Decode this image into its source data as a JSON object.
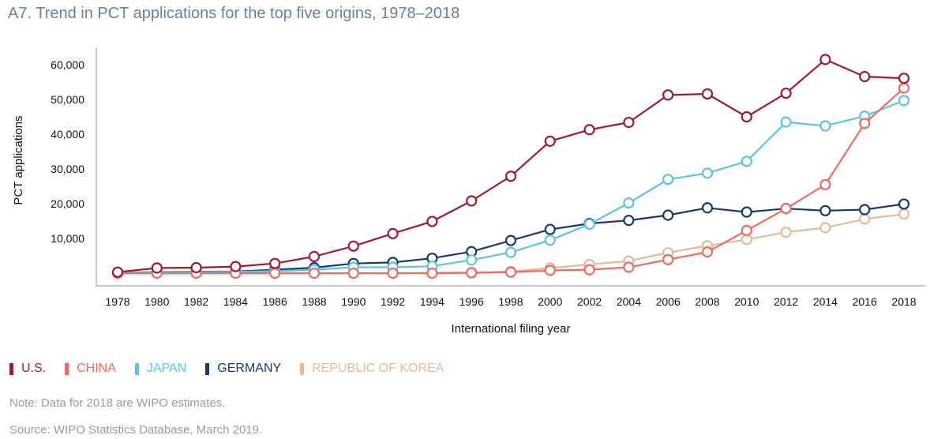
{
  "chart_data": {
    "type": "line",
    "title": "A7. Trend in PCT applications for the top five origins, 1978–2018",
    "xlabel": "International filing year",
    "ylabel": "PCT applications",
    "ylim": [
      0,
      65000
    ],
    "y_ticks": [
      10000,
      20000,
      30000,
      40000,
      50000,
      60000
    ],
    "y_tick_labels": [
      "10,000",
      "20,000",
      "30,000",
      "40,000",
      "50,000",
      "60,000"
    ],
    "grid": false,
    "legend_position": "bottom-left",
    "x": [
      1978,
      1980,
      1982,
      1984,
      1986,
      1988,
      1990,
      1992,
      1994,
      1996,
      1998,
      2000,
      2002,
      2004,
      2006,
      2008,
      2010,
      2012,
      2014,
      2016,
      2018
    ],
    "x_tick_labels": [
      "1978",
      "1980",
      "1982",
      "1984",
      "1986",
      "1988",
      "1990",
      "1992",
      "1994",
      "1996",
      "1998",
      "2000",
      "2002",
      "2004",
      "2006",
      "2008",
      "2010",
      "2012",
      "2014",
      "2016",
      "2018"
    ],
    "series": [
      {
        "name": "U.S.",
        "color": "#9e1b32",
        "values": [
          300,
          1500,
          1600,
          1900,
          2800,
          4800,
          7800,
          11400,
          14900,
          20800,
          27900,
          38000,
          41300,
          43400,
          51300,
          51600,
          45000,
          51800,
          61500,
          56600,
          56100
        ]
      },
      {
        "name": "CHINA",
        "color": "#ee6a63",
        "values": [
          0,
          0,
          0,
          0,
          0,
          0,
          0,
          0,
          0,
          100,
          300,
          800,
          1000,
          1700,
          3900,
          6100,
          12300,
          18600,
          25500,
          43100,
          53300
        ]
      },
      {
        "name": "JAPAN",
        "color": "#5bc6d9",
        "values": [
          200,
          200,
          300,
          400,
          600,
          1000,
          1700,
          1700,
          2000,
          3800,
          6000,
          9500,
          14100,
          20200,
          27000,
          28800,
          32200,
          43500,
          42400,
          45200,
          49700
        ]
      },
      {
        "name": "GERMANY",
        "color": "#1b3a6b",
        "values": [
          200,
          300,
          400,
          500,
          1000,
          1600,
          2800,
          3100,
          4300,
          6200,
          9400,
          12600,
          14300,
          15200,
          16700,
          18800,
          17600,
          18600,
          18000,
          18300,
          19900
        ]
      },
      {
        "name": "REPUBLIC OF KOREA",
        "color": "#e3bb9a",
        "values": [
          0,
          0,
          0,
          0,
          0,
          0,
          0,
          0,
          100,
          200,
          500,
          1500,
          2500,
          3500,
          5900,
          7900,
          9700,
          11800,
          13100,
          15600,
          17000
        ]
      }
    ]
  },
  "notes": {
    "note": "Note: Data for 2018 are WIPO estimates.",
    "source": "Source: WIPO Statistics Database, March 2019."
  }
}
